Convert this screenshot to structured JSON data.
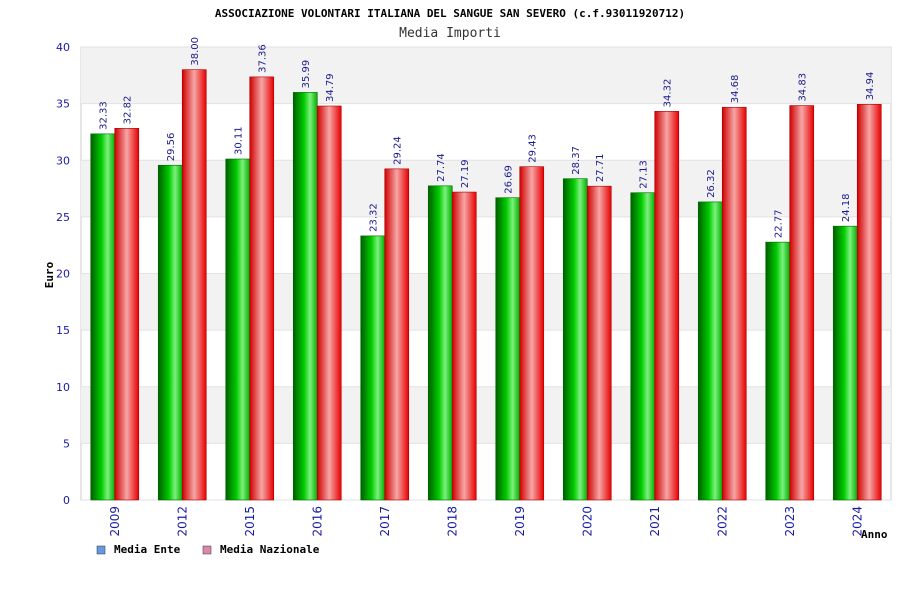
{
  "chart_data": {
    "type": "bar",
    "title": "ASSOCIAZIONE VOLONTARI ITALIANA DEL SANGUE SAN SEVERO (c.f.93011920712)",
    "subtitle": "Media Importi",
    "xlabel": "Anno",
    "ylabel": "Euro",
    "ylim": [
      0,
      40
    ],
    "yticks": [
      "0",
      "5",
      "10",
      "15",
      "20",
      "25",
      "30",
      "35",
      "40"
    ],
    "grid": true,
    "legend_position": "bottom-left",
    "categories": [
      "2009",
      "2012",
      "2015",
      "2016",
      "2017",
      "2018",
      "2019",
      "2020",
      "2021",
      "2022",
      "2023",
      "2024"
    ],
    "series": [
      {
        "name": "Media Ente",
        "values": [
          32.33,
          29.56,
          30.11,
          35.99,
          23.32,
          27.74,
          26.69,
          28.37,
          27.13,
          26.32,
          22.77,
          24.18
        ],
        "labels": [
          "32.33",
          "29.56",
          "30.11",
          "35.99",
          "23.32",
          "27.74",
          "26.69",
          "28.37",
          "27.13",
          "26.32",
          "22.77",
          "24.18"
        ],
        "color": "#00aa00",
        "legend_color": "#6699dd"
      },
      {
        "name": "Media Nazionale",
        "values": [
          32.82,
          38.0,
          37.36,
          34.79,
          29.24,
          27.19,
          29.43,
          27.71,
          34.32,
          34.68,
          34.83,
          34.94
        ],
        "labels": [
          "32.82",
          "38.00",
          "37.36",
          "34.79",
          "29.24",
          "27.19",
          "29.43",
          "27.71",
          "34.32",
          "34.68",
          "34.83",
          "34.94"
        ],
        "color": "#ee0000",
        "legend_color": "#dd88aa"
      }
    ]
  }
}
